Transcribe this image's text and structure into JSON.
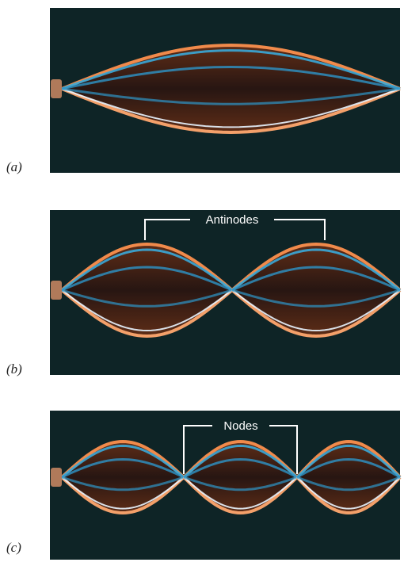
{
  "panels": [
    {
      "label": "(a)"
    },
    {
      "label": "(b)",
      "annotation": "Antinodes"
    },
    {
      "label": "(c)",
      "annotation": "Nodes"
    }
  ]
}
